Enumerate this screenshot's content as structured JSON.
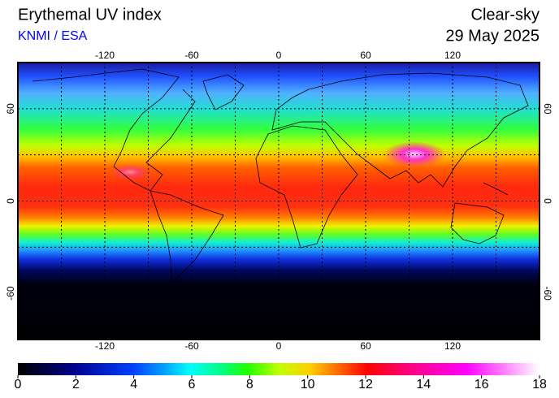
{
  "header": {
    "title": "Erythemal UV index",
    "source": "KNMI / ESA",
    "condition": "Clear-sky",
    "date": "29 May 2025"
  },
  "map": {
    "lonlim": [
      -180,
      180
    ],
    "latlim": [
      -90,
      90
    ],
    "lon_ticks": [
      -120,
      -60,
      0,
      60,
      120
    ],
    "lat_ticks": [
      60,
      0,
      -60
    ],
    "lon_grid": [
      -150,
      -120,
      -90,
      -60,
      -30,
      0,
      30,
      60,
      90,
      120,
      150
    ],
    "lat_grid": [
      -60,
      -30,
      0,
      30,
      60
    ]
  },
  "colorbar": {
    "lim": [
      0,
      18
    ],
    "ticks": [
      0,
      2,
      4,
      6,
      8,
      10,
      12,
      14,
      16,
      18
    ]
  }
}
